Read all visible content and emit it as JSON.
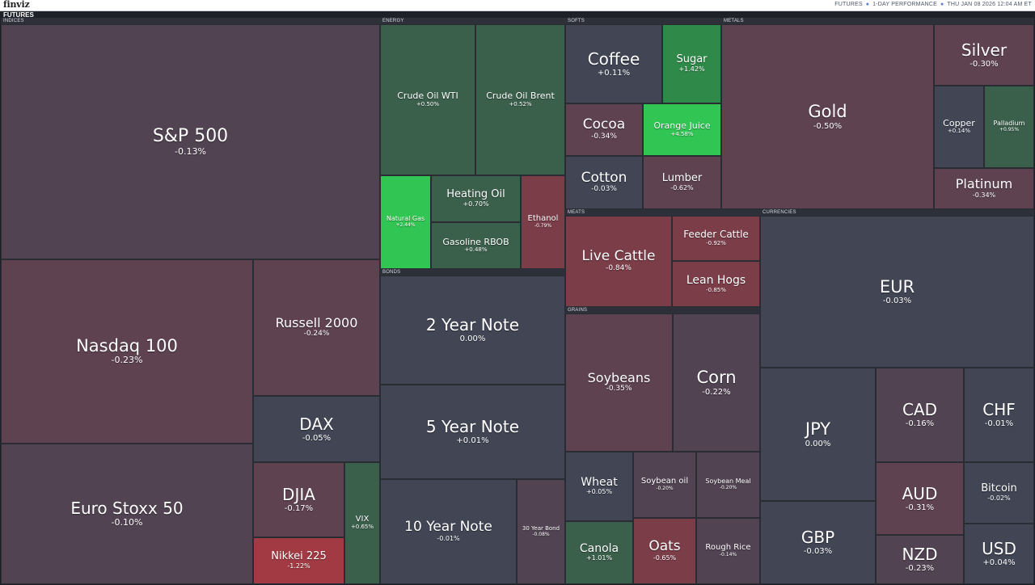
{
  "header": {
    "logo": "finviz",
    "info": [
      "FUTURES",
      "1-DAY PERFORMANCE",
      "THU JAN 08 2026 12:04 AM ET"
    ],
    "page_label": "FUTURES"
  },
  "colors": {
    "neutral": "#414554",
    "slight_down": "#514352",
    "down": "#5e4250",
    "more_down": "#7b3d48",
    "strong_down": "#a13a42",
    "slight_up": "#3a5f4b",
    "up": "#2f8a4a",
    "strong_up": "#31c553"
  },
  "sectors": [
    {
      "name": "INDICES",
      "tiles": [
        {
          "name": "S&P 500",
          "change": "-0.13%"
        },
        {
          "name": "Nasdaq 100",
          "change": "-0.23%"
        },
        {
          "name": "Russell 2000",
          "change": "-0.24%"
        },
        {
          "name": "DAX",
          "change": "-0.05%"
        },
        {
          "name": "Euro Stoxx 50",
          "change": "-0.10%"
        },
        {
          "name": "DJIA",
          "change": "-0.17%"
        },
        {
          "name": "VIX",
          "change": "+0.65%"
        },
        {
          "name": "Nikkei 225",
          "change": "-1.22%"
        }
      ]
    },
    {
      "name": "ENERGY",
      "tiles": [
        {
          "name": "Crude Oil WTI",
          "change": "+0.50%"
        },
        {
          "name": "Crude Oil Brent",
          "change": "+0.52%"
        },
        {
          "name": "Natural Gas",
          "change": "+2.44%"
        },
        {
          "name": "Heating Oil",
          "change": "+0.70%"
        },
        {
          "name": "Gasoline RBOB",
          "change": "+0.48%"
        },
        {
          "name": "Ethanol",
          "change": "-0.79%"
        }
      ]
    },
    {
      "name": "SOFTS",
      "tiles": [
        {
          "name": "Coffee",
          "change": "+0.11%"
        },
        {
          "name": "Sugar",
          "change": "+1.42%"
        },
        {
          "name": "Cocoa",
          "change": "-0.34%"
        },
        {
          "name": "Orange Juice",
          "change": "+4.58%"
        },
        {
          "name": "Cotton",
          "change": "-0.03%"
        },
        {
          "name": "Lumber",
          "change": "-0.62%"
        }
      ]
    },
    {
      "name": "METALS",
      "tiles": [
        {
          "name": "Gold",
          "change": "-0.50%"
        },
        {
          "name": "Silver",
          "change": "-0.30%"
        },
        {
          "name": "Copper",
          "change": "+0.14%"
        },
        {
          "name": "Palladium",
          "change": "+0.95%"
        },
        {
          "name": "Platinum",
          "change": "-0.34%"
        }
      ]
    },
    {
      "name": "BONDS",
      "tiles": [
        {
          "name": "2 Year Note",
          "change": "0.00%"
        },
        {
          "name": "5 Year Note",
          "change": "+0.01%"
        },
        {
          "name": "10 Year Note",
          "change": "-0.01%"
        },
        {
          "name": "30 Year Bond",
          "change": "-0.08%"
        }
      ]
    },
    {
      "name": "MEATS",
      "tiles": [
        {
          "name": "Live Cattle",
          "change": "-0.84%"
        },
        {
          "name": "Feeder Cattle",
          "change": "-0.92%"
        },
        {
          "name": "Lean Hogs",
          "change": "-0.85%"
        }
      ]
    },
    {
      "name": "GRAINS",
      "tiles": [
        {
          "name": "Soybeans",
          "change": "-0.35%"
        },
        {
          "name": "Corn",
          "change": "-0.22%"
        },
        {
          "name": "Wheat",
          "change": "+0.05%"
        },
        {
          "name": "Soybean oil",
          "change": "-0.20%"
        },
        {
          "name": "Soybean Meal",
          "change": "-0.20%"
        },
        {
          "name": "Canola",
          "change": "+1.01%"
        },
        {
          "name": "Oats",
          "change": "-0.65%"
        },
        {
          "name": "Rough Rice",
          "change": "-0.14%"
        }
      ]
    },
    {
      "name": "CURRENCIES",
      "tiles": [
        {
          "name": "EUR",
          "change": "-0.03%"
        },
        {
          "name": "JPY",
          "change": "0.00%"
        },
        {
          "name": "CAD",
          "change": "-0.16%"
        },
        {
          "name": "CHF",
          "change": "-0.01%"
        },
        {
          "name": "AUD",
          "change": "-0.31%"
        },
        {
          "name": "Bitcoin",
          "change": "-0.02%"
        },
        {
          "name": "GBP",
          "change": "-0.03%"
        },
        {
          "name": "NZD",
          "change": "-0.23%"
        },
        {
          "name": "USD",
          "change": "+0.04%"
        }
      ]
    }
  ]
}
